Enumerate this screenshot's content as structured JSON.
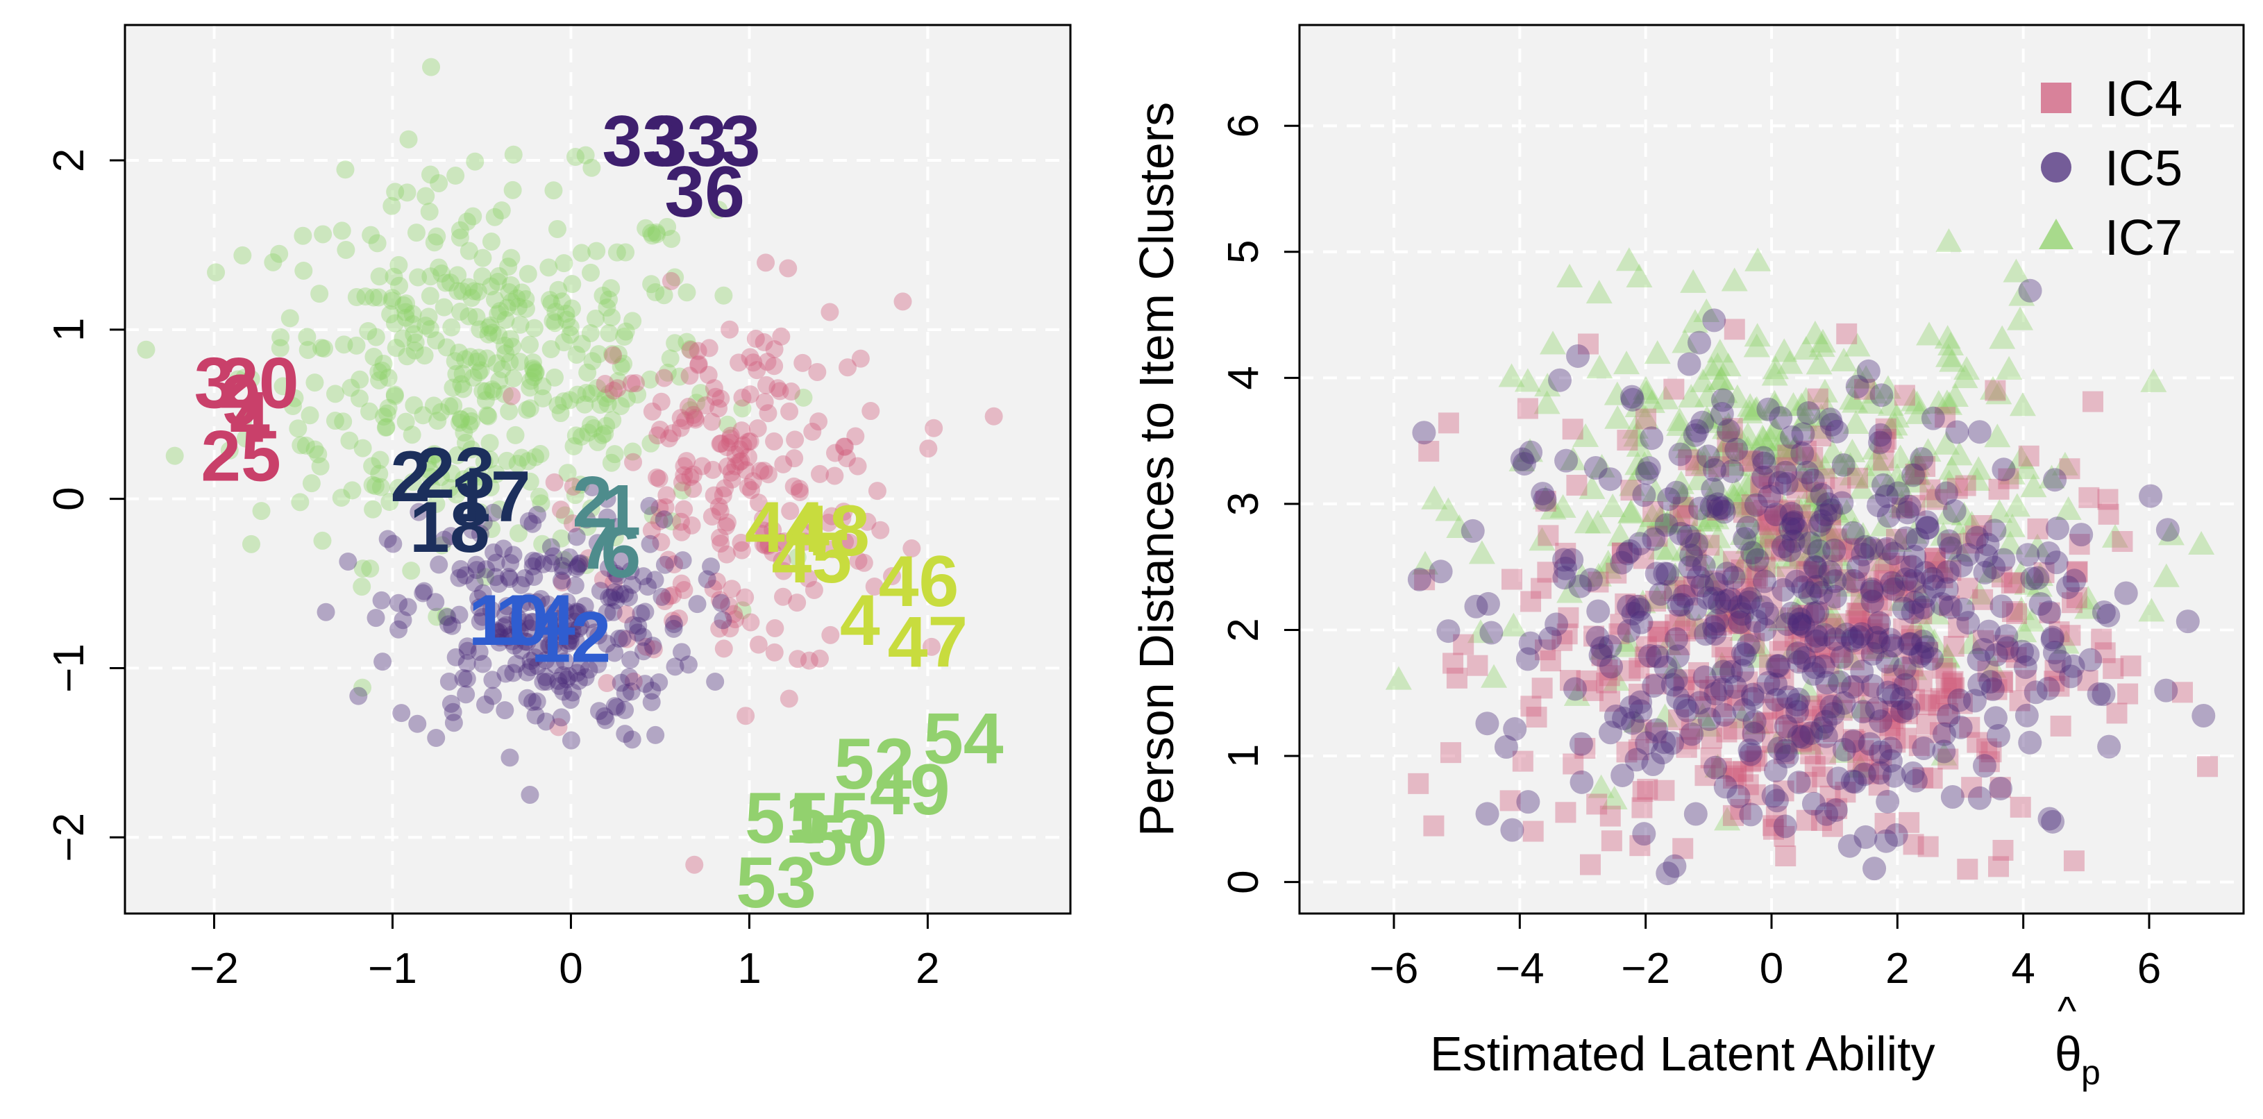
{
  "chart_data": [
    {
      "type": "scatter",
      "title": "",
      "xlabel": "",
      "ylabel": "",
      "xlim": [
        -2.5,
        2.8
      ],
      "ylim": [
        -2.45,
        2.8
      ],
      "xticks": [
        "-2",
        "-1",
        "0",
        "1",
        "2"
      ],
      "yticks": [
        "-2",
        "-1",
        "0",
        "1",
        "2"
      ],
      "grid": true,
      "person_clouds": [
        {
          "name": "IC7 persons",
          "color": "#8fd16a",
          "center": [
            -0.5,
            0.75
          ],
          "spread": [
            0.65,
            0.55
          ],
          "count": 420
        },
        {
          "name": "IC4 persons",
          "color": "#cf5c7c",
          "center": [
            0.95,
            0.05
          ],
          "spread": [
            0.45,
            0.55
          ],
          "count": 230
        },
        {
          "name": "IC5 persons",
          "color": "#4a2a7a",
          "center": [
            -0.15,
            -0.75
          ],
          "spread": [
            0.42,
            0.35
          ],
          "count": 260
        }
      ],
      "item_labels": [
        {
          "text": "3",
          "x": -2.0,
          "y": 0.65,
          "color": "#c9406a"
        },
        {
          "text": "20",
          "x": -1.75,
          "y": 0.65,
          "color": "#c9406a"
        },
        {
          "text": "9",
          "x": -1.85,
          "y": 0.55,
          "color": "#c9406a"
        },
        {
          "text": "4",
          "x": -1.8,
          "y": 0.45,
          "color": "#c9406a"
        },
        {
          "text": "25",
          "x": -1.85,
          "y": 0.22,
          "color": "#c9406a"
        },
        {
          "text": "2",
          "x": -0.9,
          "y": 0.1,
          "color": "#1c2f5c"
        },
        {
          "text": "23",
          "x": -0.65,
          "y": 0.12,
          "color": "#1c2f5c"
        },
        {
          "text": "17",
          "x": -0.45,
          "y": -0.02,
          "color": "#1c2f5c"
        },
        {
          "text": "18",
          "x": -0.68,
          "y": -0.2,
          "color": "#1c2f5c"
        },
        {
          "text": "33",
          "x": 0.4,
          "y": 2.08,
          "color": "#3e1f6e"
        },
        {
          "text": "33",
          "x": 0.65,
          "y": 2.08,
          "color": "#3e1f6e"
        },
        {
          "text": "3",
          "x": 0.95,
          "y": 2.08,
          "color": "#3e1f6e"
        },
        {
          "text": "36",
          "x": 0.75,
          "y": 1.78,
          "color": "#3e1f6e"
        },
        {
          "text": "2",
          "x": 0.12,
          "y": -0.05,
          "color": "#4e8c8c"
        },
        {
          "text": "1",
          "x": 0.28,
          "y": -0.1,
          "color": "#4e8c8c"
        },
        {
          "text": "7",
          "x": 0.15,
          "y": -0.3,
          "color": "#4e8c8c"
        },
        {
          "text": "6",
          "x": 0.28,
          "y": -0.35,
          "color": "#4e8c8c"
        },
        {
          "text": "10",
          "x": -0.35,
          "y": -0.75,
          "color": "#2f5dd0"
        },
        {
          "text": "14",
          "x": -0.2,
          "y": -0.75,
          "color": "#2f5dd0"
        },
        {
          "text": "12",
          "x": 0.0,
          "y": -0.85,
          "color": "#2f5dd0"
        },
        {
          "text": "44",
          "x": 1.2,
          "y": -0.2,
          "color": "#c8dc3e"
        },
        {
          "text": "48",
          "x": 1.45,
          "y": -0.22,
          "color": "#c8dc3e"
        },
        {
          "text": "45",
          "x": 1.35,
          "y": -0.38,
          "color": "#c8dc3e"
        },
        {
          "text": "46",
          "x": 1.95,
          "y": -0.52,
          "color": "#c8dc3e"
        },
        {
          "text": "4",
          "x": 1.62,
          "y": -0.75,
          "color": "#c8dc3e"
        },
        {
          "text": "47",
          "x": 2.0,
          "y": -0.88,
          "color": "#c8dc3e"
        },
        {
          "text": "54",
          "x": 2.2,
          "y": -1.45,
          "color": "#92d16e"
        },
        {
          "text": "52",
          "x": 1.7,
          "y": -1.6,
          "color": "#92d16e"
        },
        {
          "text": "49",
          "x": 1.9,
          "y": -1.75,
          "color": "#92d16e"
        },
        {
          "text": "51",
          "x": 1.2,
          "y": -1.92,
          "color": "#92d16e"
        },
        {
          "text": "55",
          "x": 1.45,
          "y": -1.92,
          "color": "#92d16e"
        },
        {
          "text": "50",
          "x": 1.55,
          "y": -2.05,
          "color": "#92d16e"
        },
        {
          "text": "53",
          "x": 1.15,
          "y": -2.3,
          "color": "#92d16e"
        }
      ]
    },
    {
      "type": "scatter",
      "title": "",
      "xlabel": "Estimated Latent Ability",
      "xlabel_symbol": "θ",
      "xlabel_hat": "^",
      "xlabel_subscript": "p",
      "ylabel": "Person Distances to Item Clusters",
      "xlim": [
        -7.5,
        7.5
      ],
      "ylim": [
        -0.25,
        6.8
      ],
      "xticks": [
        "-6",
        "-4",
        "-2",
        "0",
        "2",
        "4",
        "6"
      ],
      "yticks": [
        "0",
        "1",
        "2",
        "3",
        "4",
        "5",
        "6"
      ],
      "grid": true,
      "legend": {
        "position": "top-right",
        "entries": [
          {
            "label": "IC4",
            "color": "#cf5c7c",
            "marker": "square"
          },
          {
            "label": "IC5",
            "color": "#4a2a7a",
            "marker": "circle"
          },
          {
            "label": "IC7",
            "color": "#8fd16a",
            "marker": "triangle"
          }
        ]
      },
      "series": [
        {
          "name": "IC4",
          "marker": "square",
          "color": "#cf5c7c",
          "center": [
            0.5,
            1.9
          ],
          "spread": [
            2.3,
            0.95
          ],
          "count": 480
        },
        {
          "name": "IC5",
          "marker": "circle",
          "color": "#4a2a7a",
          "center": [
            0.3,
            2.1
          ],
          "spread": [
            2.4,
            0.95
          ],
          "count": 480
        },
        {
          "name": "IC7",
          "marker": "triangle",
          "color": "#8fd16a",
          "center": [
            0.3,
            3.0
          ],
          "spread": [
            2.2,
            0.8
          ],
          "count": 420
        }
      ]
    }
  ]
}
